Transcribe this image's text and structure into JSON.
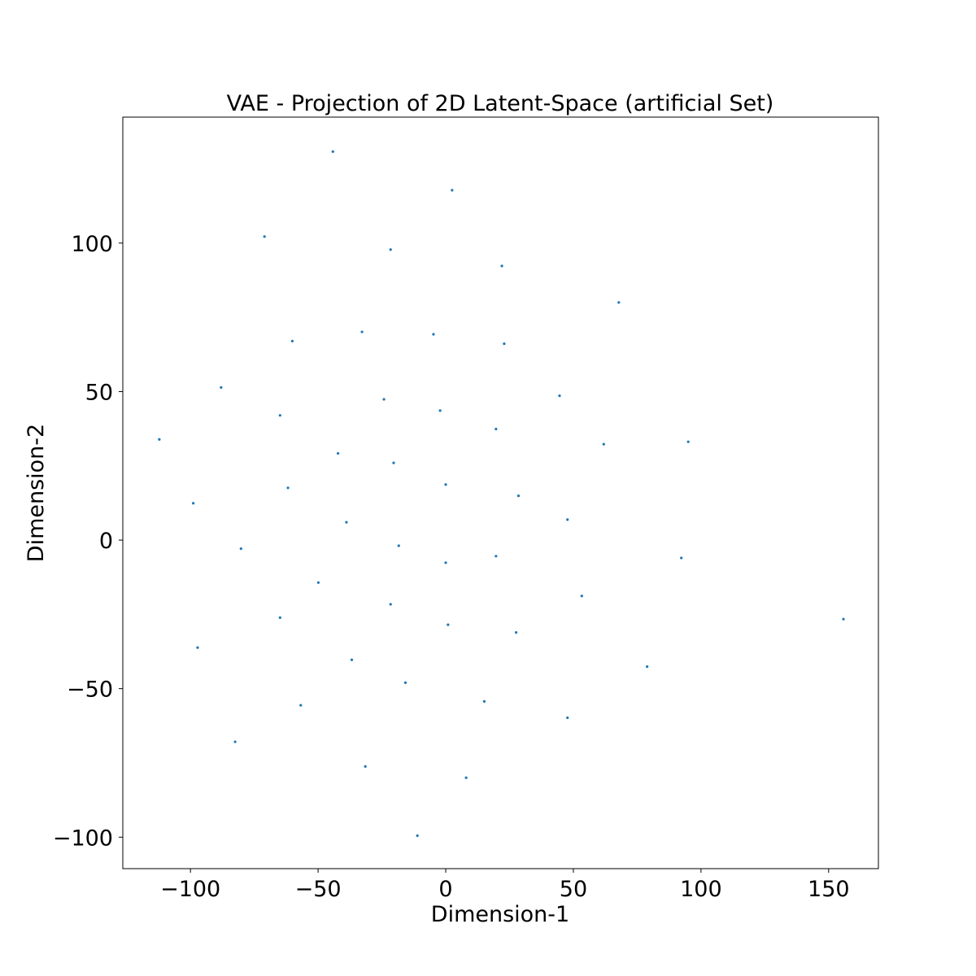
{
  "chart_data": {
    "type": "scatter",
    "title": "VAE - Projection of 2D Latent-Space (artificial Set)",
    "xlabel": "Dimension-1",
    "ylabel": "Dimension-2",
    "xlim": [
      -126.5,
      169.5
    ],
    "ylim": [
      -110.6,
      142.4
    ],
    "xticks": [
      -100,
      -50,
      0,
      50,
      100,
      150
    ],
    "yticks": [
      -100,
      -50,
      0,
      50,
      100
    ],
    "xtick_labels": [
      "−100",
      "−50",
      "0",
      "50",
      "100",
      "150"
    ],
    "ytick_labels": [
      "−100",
      "−50",
      "0",
      "50",
      "100"
    ],
    "grid": false,
    "legend": "none",
    "point_color": "#1f77b4",
    "points": [
      {
        "x": -44.2,
        "y": 130.8
      },
      {
        "x": 2.5,
        "y": 117.8
      },
      {
        "x": -71.0,
        "y": 102.2
      },
      {
        "x": -21.6,
        "y": 97.8
      },
      {
        "x": 22.0,
        "y": 92.3
      },
      {
        "x": 67.8,
        "y": 80.0
      },
      {
        "x": -60.1,
        "y": 67.0
      },
      {
        "x": -32.8,
        "y": 70.1
      },
      {
        "x": -4.8,
        "y": 69.3
      },
      {
        "x": 22.9,
        "y": 66.1
      },
      {
        "x": -88.0,
        "y": 51.4
      },
      {
        "x": -24.2,
        "y": 47.4
      },
      {
        "x": -2.2,
        "y": 43.6
      },
      {
        "x": 44.6,
        "y": 48.6
      },
      {
        "x": -64.9,
        "y": 42.0
      },
      {
        "x": -112.2,
        "y": 33.9
      },
      {
        "x": 19.7,
        "y": 37.4
      },
      {
        "x": 61.9,
        "y": 32.3
      },
      {
        "x": 95.0,
        "y": 33.1
      },
      {
        "x": -42.2,
        "y": 29.2
      },
      {
        "x": -20.4,
        "y": 26.0
      },
      {
        "x": 0.0,
        "y": 18.7
      },
      {
        "x": -61.8,
        "y": 17.6
      },
      {
        "x": 28.5,
        "y": 14.9
      },
      {
        "x": -98.9,
        "y": 12.4
      },
      {
        "x": 47.7,
        "y": 6.9
      },
      {
        "x": -38.9,
        "y": 6.0
      },
      {
        "x": -18.4,
        "y": -1.9
      },
      {
        "x": -80.2,
        "y": -2.9
      },
      {
        "x": 19.7,
        "y": -5.4
      },
      {
        "x": 0.0,
        "y": -7.6
      },
      {
        "x": 92.3,
        "y": -6.0
      },
      {
        "x": -49.9,
        "y": -14.3
      },
      {
        "x": 53.3,
        "y": -18.8
      },
      {
        "x": -21.6,
        "y": -21.6
      },
      {
        "x": -64.9,
        "y": -26.1
      },
      {
        "x": 155.8,
        "y": -26.6
      },
      {
        "x": 0.9,
        "y": -28.5
      },
      {
        "x": 27.6,
        "y": -31.1
      },
      {
        "x": -97.2,
        "y": -36.2
      },
      {
        "x": -36.8,
        "y": -40.3
      },
      {
        "x": 78.9,
        "y": -42.6
      },
      {
        "x": -15.8,
        "y": -48.0
      },
      {
        "x": 15.1,
        "y": -54.3
      },
      {
        "x": -56.8,
        "y": -55.6
      },
      {
        "x": 47.7,
        "y": -59.8
      },
      {
        "x": -82.5,
        "y": -67.9
      },
      {
        "x": -31.5,
        "y": -76.2
      },
      {
        "x": 8.0,
        "y": -80.0
      },
      {
        "x": -11.1,
        "y": -99.5
      }
    ]
  }
}
